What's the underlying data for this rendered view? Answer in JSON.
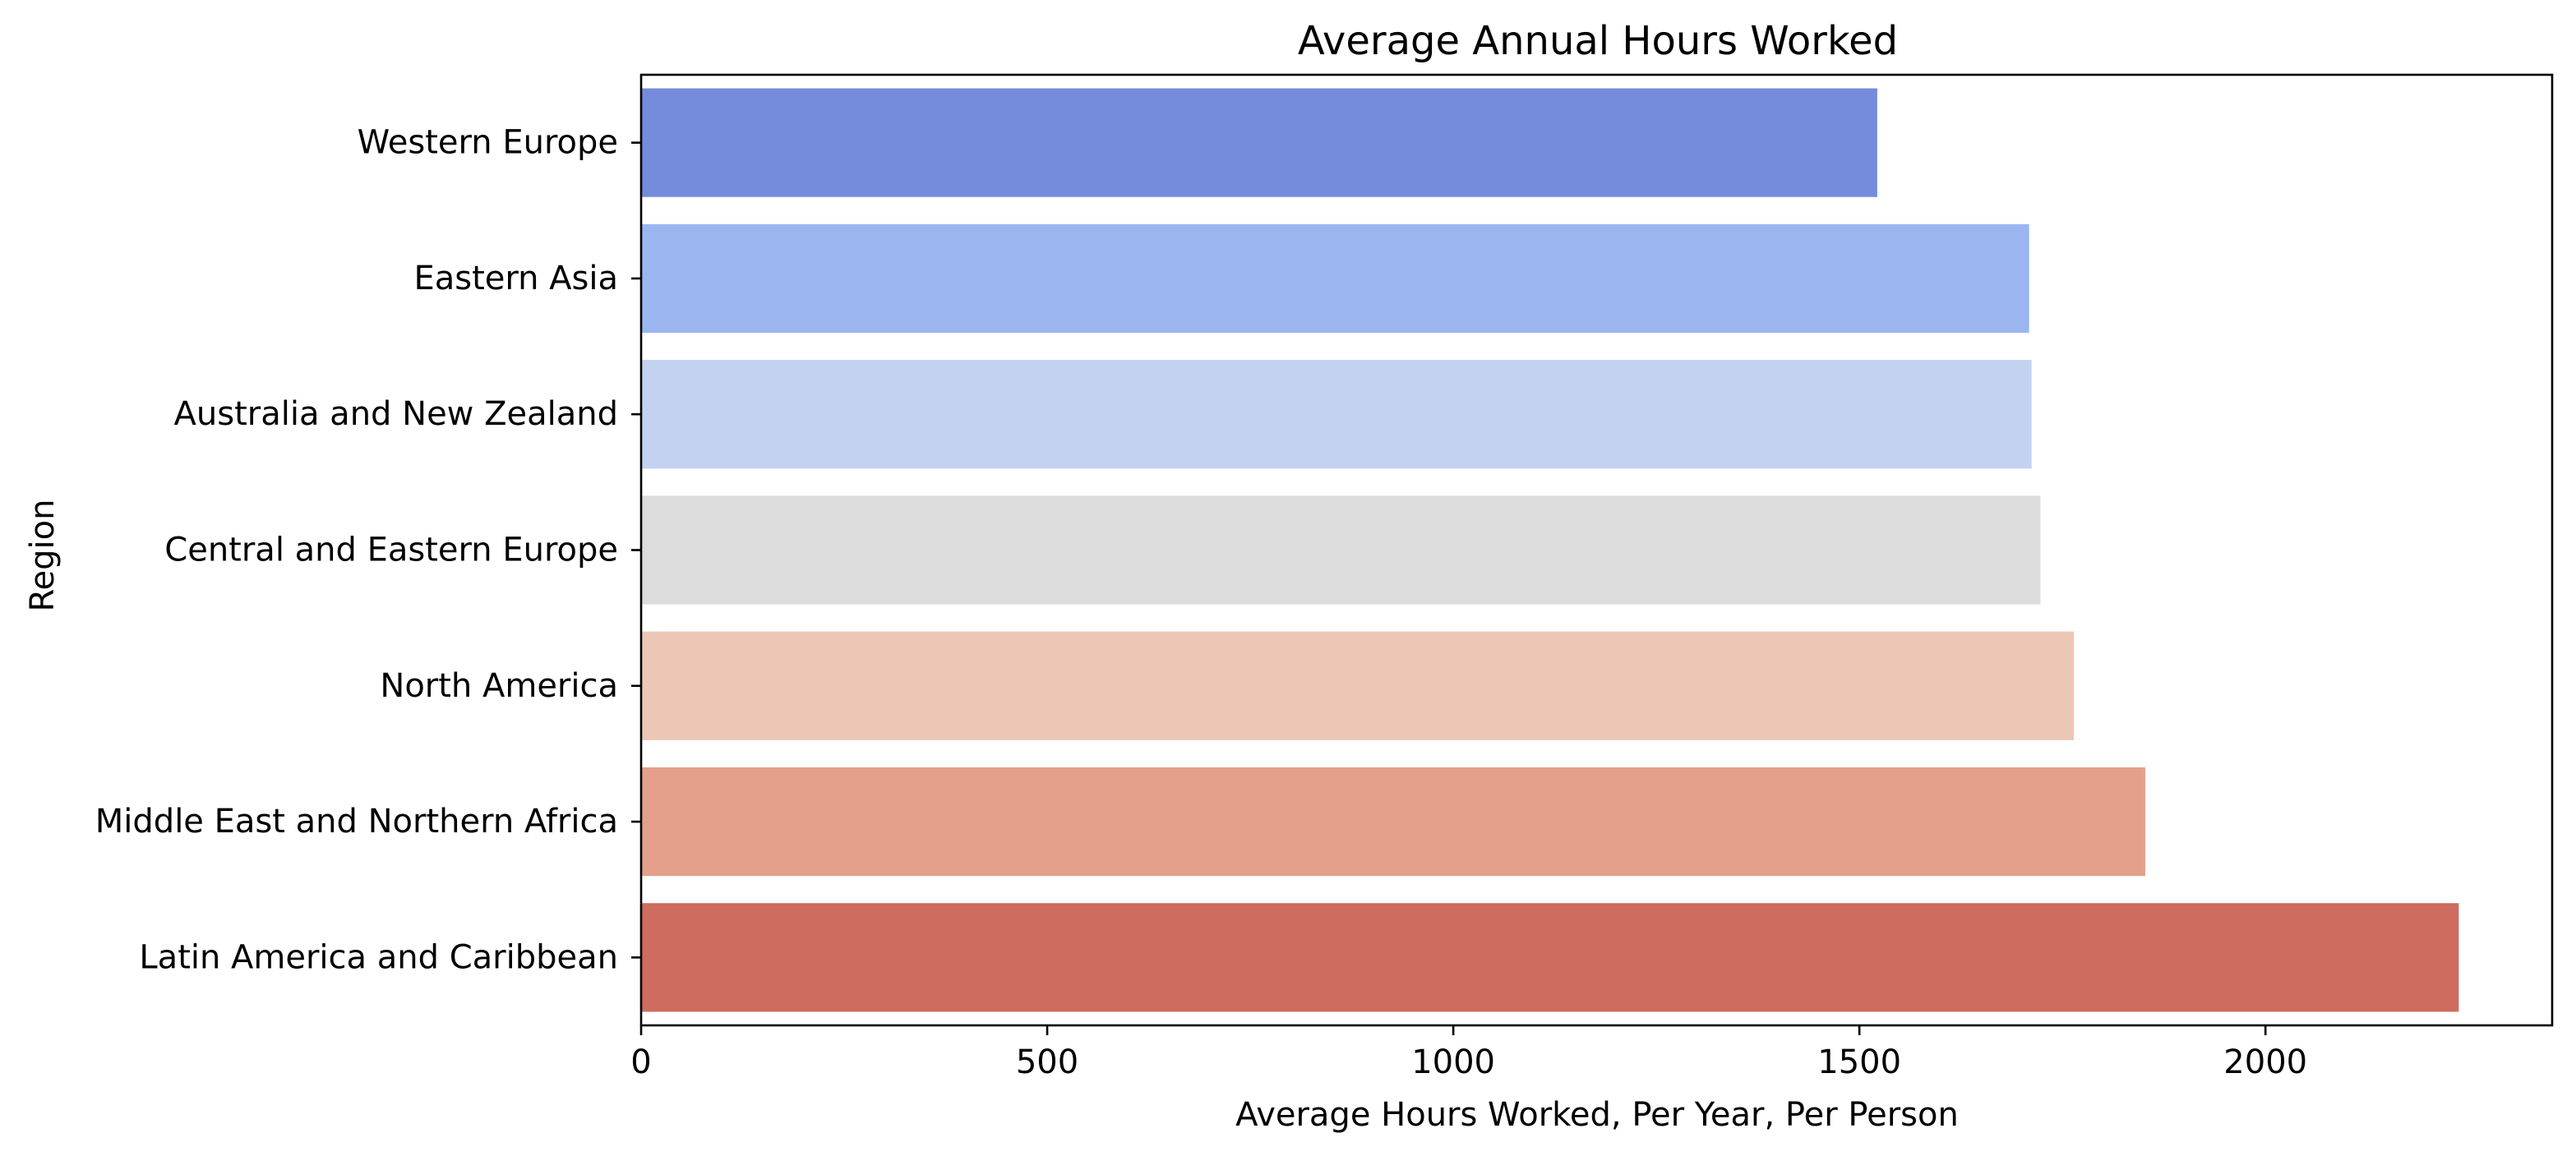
{
  "chart_data": {
    "type": "bar",
    "orientation": "horizontal",
    "title": "Average Annual Hours Worked",
    "xlabel": "Average Hours Worked, Per Year, Per Person",
    "ylabel": "Region",
    "categories": [
      "Western Europe",
      "Eastern Asia",
      "Australia and New Zealand",
      "Central and Eastern Europe",
      "North America",
      "Middle East and Northern Africa",
      "Latin America and Caribbean"
    ],
    "values": [
      1522,
      1709,
      1712,
      1723,
      1764,
      1852,
      2238
    ],
    "colors": [
      "#758bdb",
      "#9bb5f0",
      "#c2d2f0",
      "#dcdcdc",
      "#ecc7b6",
      "#e4a08a",
      "#cd6c5f"
    ],
    "xlim": [
      0,
      2353
    ],
    "xticks": [
      0,
      500,
      1000,
      1500,
      2000
    ],
    "grid": false,
    "legend": "none"
  }
}
